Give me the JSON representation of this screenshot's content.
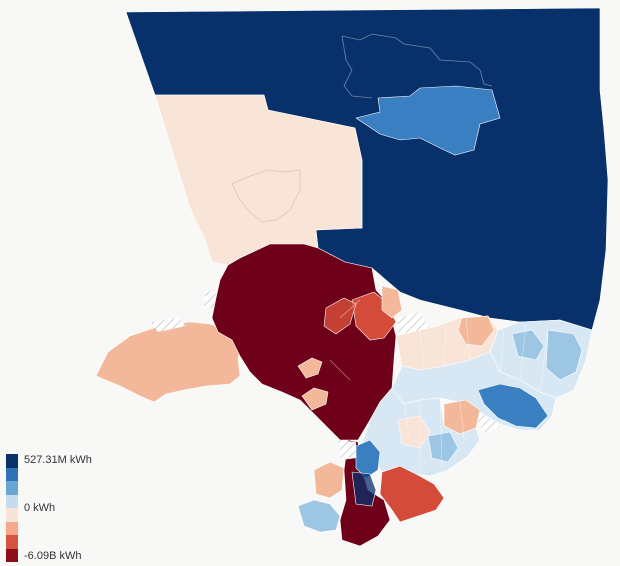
{
  "legend": {
    "max_label": "527.31M kWh",
    "mid_label": "0 kWh",
    "min_label": "-6.09B kWh",
    "colors": [
      "#08306b",
      "#2f72b8",
      "#6aa6d4",
      "#c3dcee",
      "#f7e3d7",
      "#f4a98a",
      "#d6543f",
      "#8d0d1d"
    ]
  },
  "palette": {
    "pos_high": "#08306b",
    "pos_mid": "#3a7fc1",
    "pos_low": "#9dc6e5",
    "pos_faint": "#d7e8f4",
    "zero": "#f9e4d8",
    "neg_low": "#f3b79a",
    "neg_mid": "#d44b3a",
    "neg_high": "#6e0019",
    "neg_deep": "#7a0520",
    "hatch": "#c8ccd0"
  }
}
